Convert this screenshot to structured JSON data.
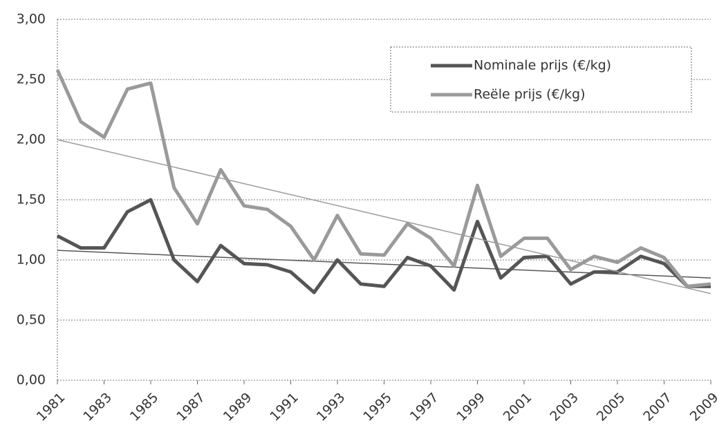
{
  "chart_data": {
    "type": "line",
    "xlim": [
      1981,
      2009
    ],
    "xticks": [
      1981,
      1983,
      1985,
      1987,
      1989,
      1991,
      1993,
      1995,
      1997,
      1999,
      2001,
      2003,
      2005,
      2007,
      2009
    ],
    "ylim": [
      0,
      3
    ],
    "yticks": [
      {
        "value": 0,
        "label": "0,00"
      },
      {
        "value": 0.5,
        "label": "0,50"
      },
      {
        "value": 1,
        "label": "1,00"
      },
      {
        "value": 1.5,
        "label": "1,50"
      },
      {
        "value": 2,
        "label": "2,00"
      },
      {
        "value": 2.5,
        "label": "2,50"
      },
      {
        "value": 3,
        "label": "3,00"
      }
    ],
    "grid": true,
    "legend": "top-right",
    "x": [
      1981,
      1982,
      1983,
      1984,
      1985,
      1986,
      1987,
      1988,
      1989,
      1990,
      1991,
      1992,
      1993,
      1994,
      1995,
      1996,
      1997,
      1998,
      1999,
      2000,
      2001,
      2002,
      2003,
      2004,
      2005,
      2006,
      2007,
      2008,
      2009
    ],
    "series": [
      {
        "name": "Nominale prijs (€/kg)",
        "color": "#555555",
        "values": [
          1.2,
          1.1,
          1.1,
          1.4,
          1.5,
          1.0,
          0.82,
          1.12,
          0.97,
          0.96,
          0.9,
          0.73,
          1.0,
          0.8,
          0.78,
          1.02,
          0.95,
          0.75,
          1.32,
          0.85,
          1.02,
          1.03,
          0.8,
          0.9,
          0.9,
          1.03,
          0.97,
          0.78,
          0.78
        ],
        "trend": [
          1.08,
          0.85
        ]
      },
      {
        "name": "Reële prijs (€/kg)",
        "color": "#9a9a9a",
        "values": [
          2.58,
          2.15,
          2.02,
          2.42,
          2.47,
          1.6,
          1.3,
          1.75,
          1.45,
          1.42,
          1.28,
          1.0,
          1.37,
          1.05,
          1.04,
          1.3,
          1.18,
          0.95,
          1.62,
          1.03,
          1.18,
          1.18,
          0.92,
          1.03,
          0.98,
          1.1,
          1.02,
          0.78,
          0.8
        ],
        "trend": [
          2.0,
          0.72
        ]
      }
    ]
  }
}
